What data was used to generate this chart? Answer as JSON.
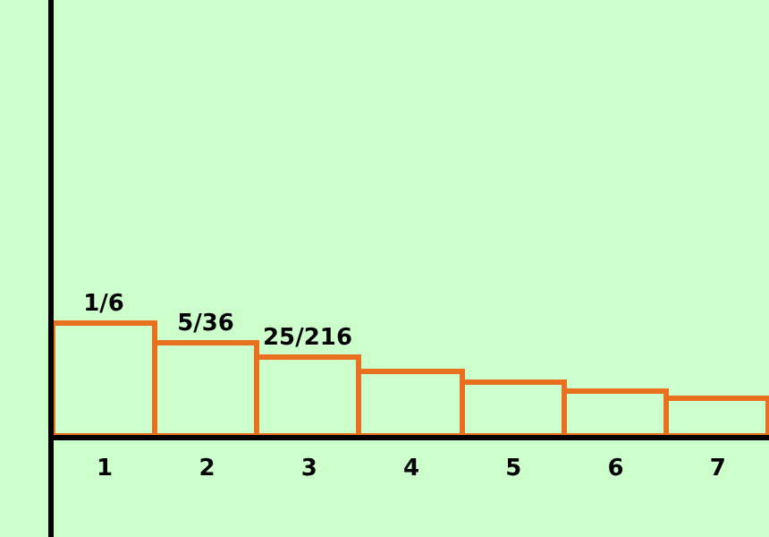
{
  "chart_data": {
    "type": "bar",
    "categories": [
      "1",
      "2",
      "3",
      "4",
      "5",
      "6",
      "7"
    ],
    "values": [
      0.1667,
      0.1389,
      0.1157,
      0.0965,
      0.0804,
      0.067,
      0.0558
    ],
    "value_labels": [
      "1/6",
      "5/36",
      "25/216",
      null,
      null,
      null,
      null
    ],
    "color": "#e8701f",
    "ylim": [
      -0.15,
      0.65
    ],
    "tick_labels": "x",
    "grid": false,
    "legend": false
  }
}
